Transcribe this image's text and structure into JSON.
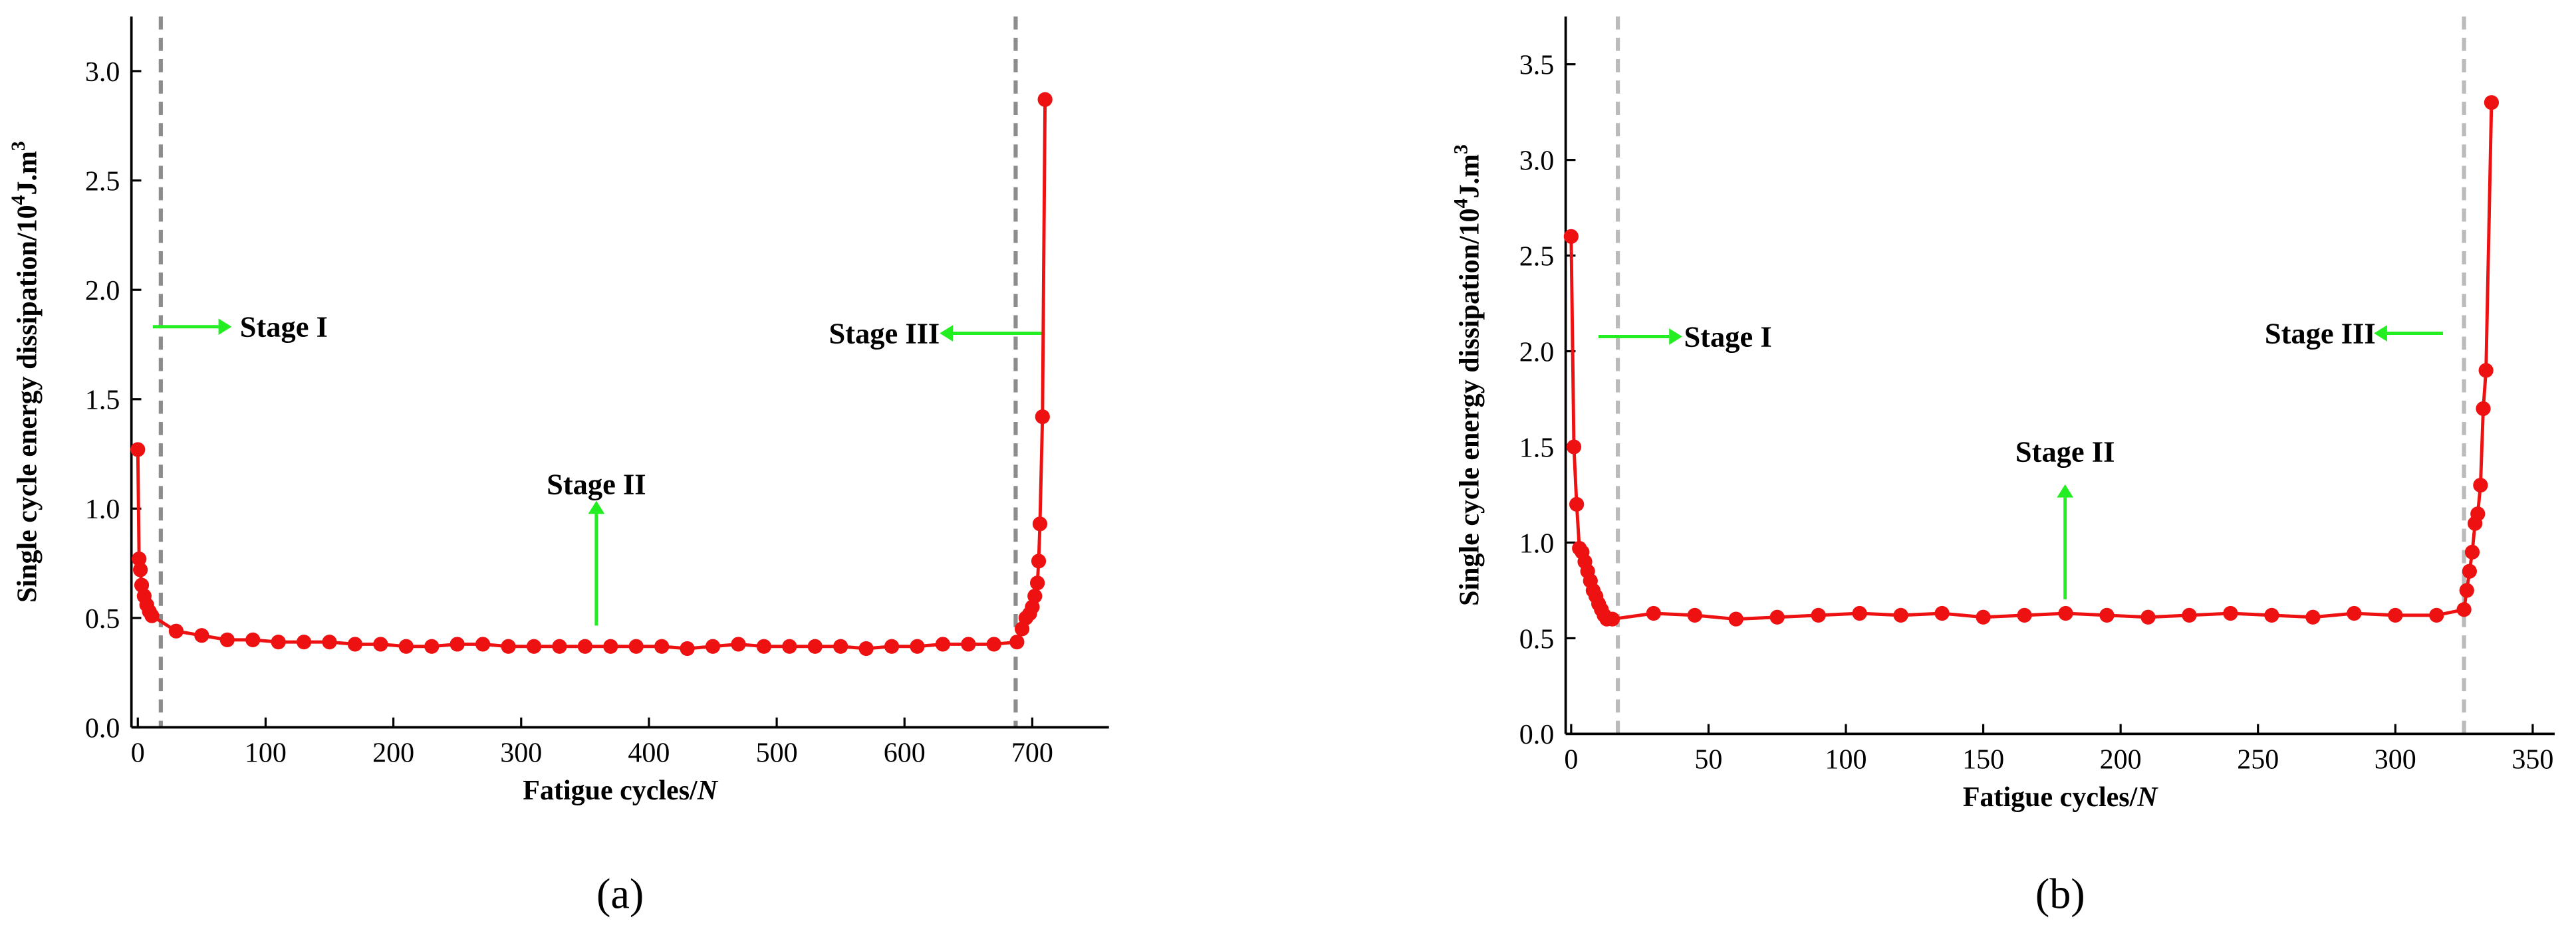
{
  "chart_data": [
    {
      "type": "line",
      "panel": "(a)",
      "xlabel": [
        "Fatigue cycles/",
        "N"
      ],
      "ylabel": [
        "Single cycle energy dissipation/10",
        "4",
        "J.m",
        "3"
      ],
      "xlim": [
        -5,
        760
      ],
      "ylim": [
        0,
        3.25
      ],
      "xticks": [
        0,
        100,
        200,
        300,
        400,
        500,
        600,
        700
      ],
      "yticks": [
        {
          "value": 0,
          "label": "0.0"
        },
        {
          "value": 0.5,
          "label": "0.5"
        },
        {
          "value": 1,
          "label": "1.0"
        },
        {
          "value": 1.5,
          "label": "1.5"
        },
        {
          "value": 2,
          "label": "2.0"
        },
        {
          "value": 2.5,
          "label": "2.5"
        },
        {
          "value": 3,
          "label": "3.0"
        }
      ],
      "vlines": [
        18,
        687
      ],
      "vline_color": "#8c8c8c",
      "annotations": [
        "Stage I",
        "Stage II",
        "Stage III"
      ],
      "annotation_color": "#22ee22",
      "series": [
        {
          "color": "#ee1111",
          "x": [
            0,
            1,
            2,
            3,
            5,
            7,
            9,
            11,
            30,
            50,
            70,
            90,
            110,
            130,
            150,
            170,
            190,
            210,
            230,
            250,
            270,
            290,
            310,
            330,
            350,
            370,
            390,
            410,
            430,
            450,
            470,
            490,
            510,
            530,
            550,
            570,
            590,
            610,
            630,
            650,
            670,
            688,
            692,
            695,
            698,
            700,
            702,
            704,
            705,
            706,
            708,
            710
          ],
          "values": [
            1.27,
            0.77,
            0.72,
            0.65,
            0.6,
            0.56,
            0.53,
            0.51,
            0.44,
            0.42,
            0.4,
            0.4,
            0.39,
            0.39,
            0.39,
            0.38,
            0.38,
            0.37,
            0.37,
            0.38,
            0.38,
            0.37,
            0.37,
            0.37,
            0.37,
            0.37,
            0.37,
            0.37,
            0.36,
            0.37,
            0.38,
            0.37,
            0.37,
            0.37,
            0.37,
            0.36,
            0.37,
            0.37,
            0.38,
            0.38,
            0.38,
            0.39,
            0.45,
            0.5,
            0.52,
            0.55,
            0.6,
            0.66,
            0.76,
            0.93,
            1.42,
            2.87
          ]
        }
      ]
    },
    {
      "type": "line",
      "panel": "(b)",
      "xlabel": [
        "Fatigue cycles/",
        "N"
      ],
      "ylabel": [
        "Single cycle energy dissipation/10",
        "4",
        "J.m",
        "3"
      ],
      "xlim": [
        -2,
        358
      ],
      "ylim": [
        0,
        3.75
      ],
      "xticks": [
        0,
        50,
        100,
        150,
        200,
        250,
        300,
        350
      ],
      "yticks": [
        {
          "value": 0,
          "label": "0.0"
        },
        {
          "value": 0.5,
          "label": "0.5"
        },
        {
          "value": 1,
          "label": "1.0"
        },
        {
          "value": 1.5,
          "label": "1.5"
        },
        {
          "value": 2,
          "label": "2.0"
        },
        {
          "value": 2.5,
          "label": "2.5"
        },
        {
          "value": 3,
          "label": "3.0"
        },
        {
          "value": 3.5,
          "label": "3.5"
        }
      ],
      "vlines": [
        17,
        325
      ],
      "vline_color": "#bbbbbb",
      "annotations": [
        "Stage I",
        "Stage II",
        "Stage III"
      ],
      "annotation_color": "#22ee22",
      "series": [
        {
          "color": "#ee1111",
          "x": [
            0,
            1,
            2,
            3,
            4,
            5,
            6,
            7,
            8,
            9,
            10,
            11,
            12,
            13,
            15,
            30,
            45,
            60,
            75,
            90,
            105,
            120,
            135,
            150,
            165,
            180,
            195,
            210,
            225,
            240,
            255,
            270,
            285,
            300,
            315,
            325,
            326,
            327,
            328,
            329,
            330,
            331,
            332,
            333,
            335
          ],
          "values": [
            2.6,
            1.5,
            1.2,
            0.97,
            0.95,
            0.9,
            0.85,
            0.8,
            0.75,
            0.72,
            0.68,
            0.65,
            0.62,
            0.6,
            0.6,
            0.63,
            0.62,
            0.6,
            0.61,
            0.62,
            0.63,
            0.62,
            0.63,
            0.61,
            0.62,
            0.63,
            0.62,
            0.61,
            0.62,
            0.63,
            0.62,
            0.61,
            0.63,
            0.62,
            0.62,
            0.65,
            0.75,
            0.85,
            0.95,
            1.1,
            1.15,
            1.3,
            1.7,
            1.9,
            3.3
          ]
        }
      ]
    }
  ]
}
